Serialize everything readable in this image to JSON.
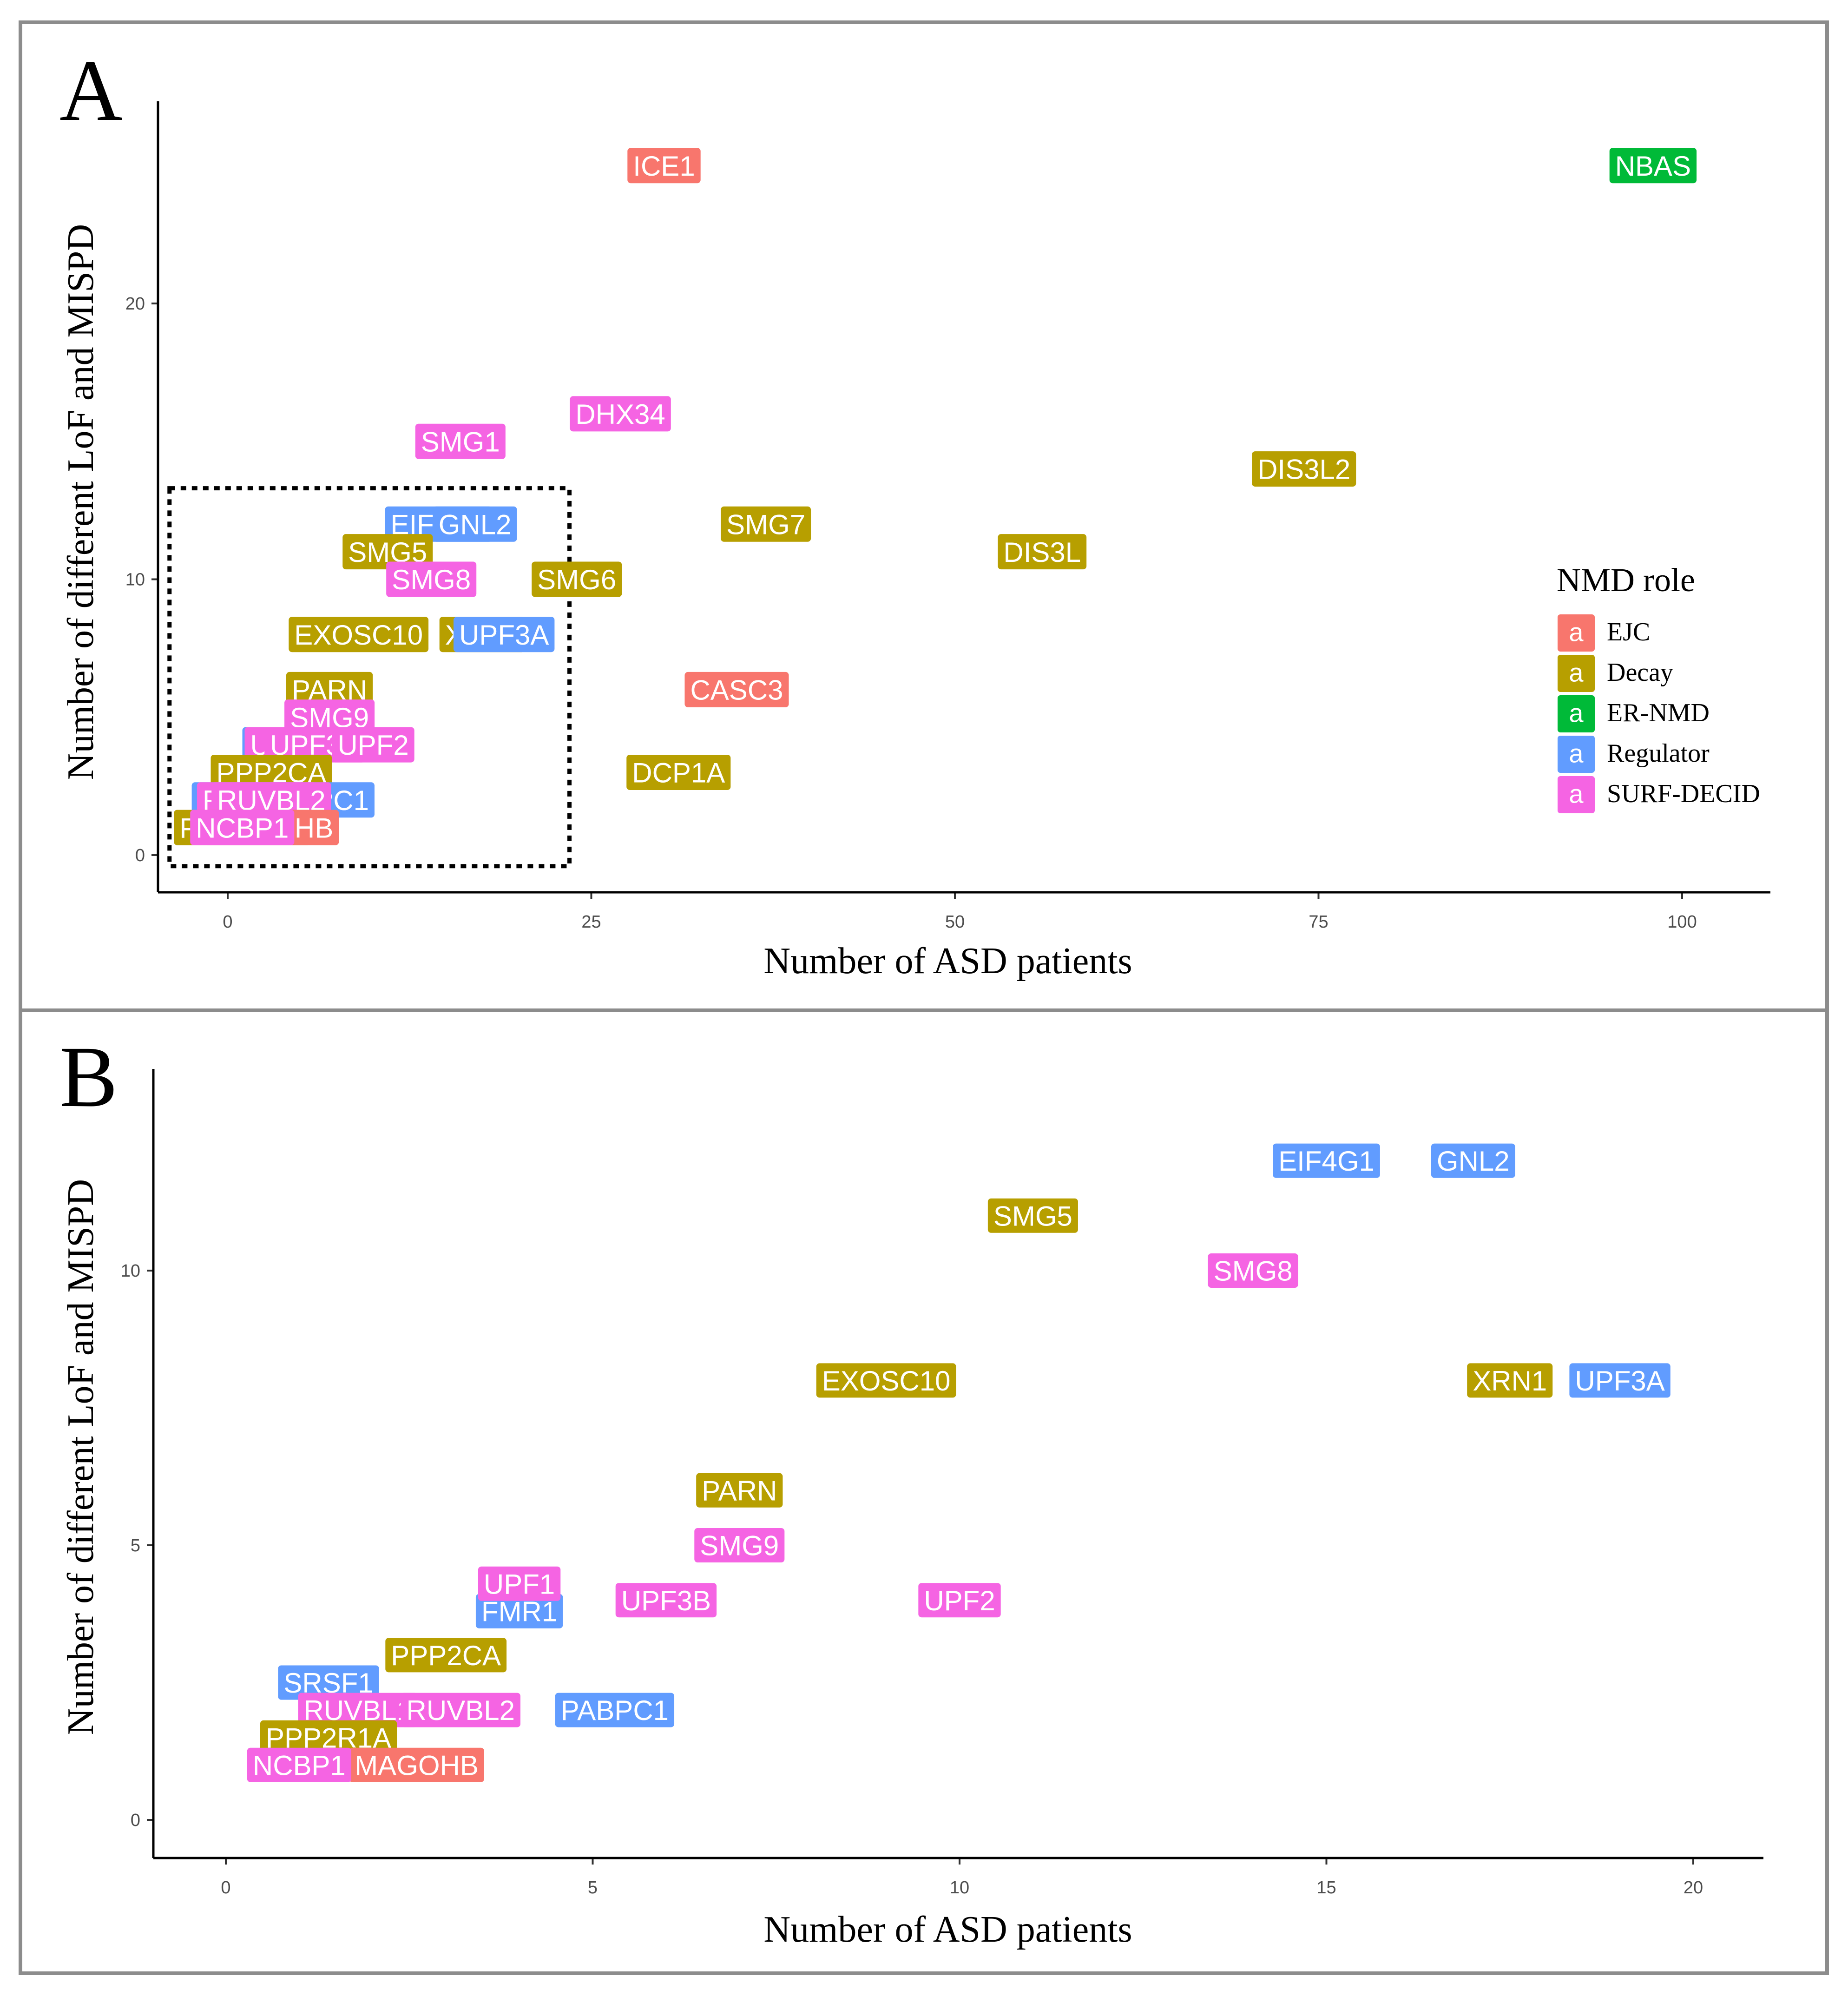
{
  "colors": {
    "EJC": "#F8766D",
    "Decay": "#B79F00",
    "ER-NMD": "#00BA38",
    "Regulator": "#619CFF",
    "SURF-DECID": "#F564E3"
  },
  "legend": {
    "title": "NMD role",
    "key_glyph": "a",
    "entries": [
      "EJC",
      "Decay",
      "ER-NMD",
      "Regulator",
      "SURF-DECID"
    ]
  },
  "chart_data": [
    {
      "type": "scatter",
      "panel_letter": "A",
      "xlabel": "Number of ASD patients",
      "ylabel": "Number of different LoF and MISPD",
      "xlim": [
        -4.5,
        106.5
      ],
      "ylim": [
        -1.2,
        26.5
      ],
      "x_ticks": [
        0,
        25,
        50,
        75,
        100
      ],
      "y_ticks": [
        0,
        10,
        20
      ],
      "zoom_box": {
        "x": [
          -4,
          23.5
        ],
        "y": [
          -0.4,
          13.3
        ]
      },
      "points": [
        {
          "gene": "ICE1",
          "role": "EJC",
          "x": 30,
          "y": 25
        },
        {
          "gene": "NBAS",
          "role": "ER-NMD",
          "x": 98,
          "y": 25
        },
        {
          "gene": "DHX34",
          "role": "SURF-DECID",
          "x": 27,
          "y": 16
        },
        {
          "gene": "SMG1",
          "role": "SURF-DECID",
          "x": 16,
          "y": 15
        },
        {
          "gene": "DIS3L2",
          "role": "Decay",
          "x": 74,
          "y": 14
        },
        {
          "gene": "SMG7",
          "role": "Decay",
          "x": 37,
          "y": 12
        },
        {
          "gene": "DIS3L",
          "role": "Decay",
          "x": 56,
          "y": 11
        },
        {
          "gene": "EIF4G1",
          "role": "Regulator",
          "x": 14.5,
          "y": 12
        },
        {
          "gene": "GNL2",
          "role": "Regulator",
          "x": 17,
          "y": 12
        },
        {
          "gene": "SMG5",
          "role": "Decay",
          "x": 11,
          "y": 11
        },
        {
          "gene": "SMG8",
          "role": "SURF-DECID",
          "x": 14,
          "y": 10
        },
        {
          "gene": "SMG6",
          "role": "Decay",
          "x": 24,
          "y": 10
        },
        {
          "gene": "EXOSC10",
          "role": "Decay",
          "x": 9,
          "y": 8
        },
        {
          "gene": "XRN1",
          "role": "Decay",
          "x": 17.5,
          "y": 8
        },
        {
          "gene": "UPF3A",
          "role": "Regulator",
          "x": 19,
          "y": 8
        },
        {
          "gene": "CASC3",
          "role": "EJC",
          "x": 35,
          "y": 6
        },
        {
          "gene": "PARN",
          "role": "Decay",
          "x": 7,
          "y": 6
        },
        {
          "gene": "SMG9",
          "role": "SURF-DECID",
          "x": 7,
          "y": 5
        },
        {
          "gene": "DCP1A",
          "role": "Decay",
          "x": 31,
          "y": 3
        },
        {
          "gene": "FMR1",
          "role": "Regulator",
          "x": 4,
          "y": 4
        },
        {
          "gene": "UPF1",
          "role": "SURF-DECID",
          "x": 4,
          "y": 4
        },
        {
          "gene": "UPF3B",
          "role": "SURF-DECID",
          "x": 6,
          "y": 4
        },
        {
          "gene": "UPF2",
          "role": "SURF-DECID",
          "x": 10,
          "y": 4
        },
        {
          "gene": "PPP2CA",
          "role": "Decay",
          "x": 3,
          "y": 3
        },
        {
          "gene": "SRSF1",
          "role": "Regulator",
          "x": 1,
          "y": 2
        },
        {
          "gene": "PABPC1",
          "role": "Regulator",
          "x": 6,
          "y": 2
        },
        {
          "gene": "RUVBL1",
          "role": "SURF-DECID",
          "x": 2,
          "y": 2
        },
        {
          "gene": "RUVBL2",
          "role": "SURF-DECID",
          "x": 3,
          "y": 2
        },
        {
          "gene": "PPP2R1A",
          "role": "Decay",
          "x": 1,
          "y": 1
        },
        {
          "gene": "MAGOHB",
          "role": "EJC",
          "x": 3,
          "y": 1
        },
        {
          "gene": "NCBP1",
          "role": "SURF-DECID",
          "x": 1,
          "y": 1
        }
      ]
    },
    {
      "type": "scatter",
      "panel_letter": "B",
      "xlabel": "Number of ASD patients",
      "ylabel": "Number of different LoF and MISPD",
      "xlim": [
        -1,
        21
      ],
      "ylim": [
        -0.6,
        13.2
      ],
      "x_ticks": [
        0,
        5,
        10,
        15,
        20
      ],
      "y_ticks": [
        0,
        5,
        10
      ],
      "points": [
        {
          "gene": "EIF4G1",
          "role": "Regulator",
          "x": 15,
          "y": 12
        },
        {
          "gene": "GNL2",
          "role": "Regulator",
          "x": 17,
          "y": 12
        },
        {
          "gene": "SMG5",
          "role": "Decay",
          "x": 11,
          "y": 11
        },
        {
          "gene": "SMG8",
          "role": "SURF-DECID",
          "x": 14,
          "y": 10
        },
        {
          "gene": "EXOSC10",
          "role": "Decay",
          "x": 9,
          "y": 8
        },
        {
          "gene": "XRN1",
          "role": "Decay",
          "x": 17.5,
          "y": 8
        },
        {
          "gene": "UPF3A",
          "role": "Regulator",
          "x": 19,
          "y": 8
        },
        {
          "gene": "PARN",
          "role": "Decay",
          "x": 7,
          "y": 6
        },
        {
          "gene": "SMG9",
          "role": "SURF-DECID",
          "x": 7,
          "y": 5
        },
        {
          "gene": "FMR1",
          "role": "Regulator",
          "x": 4,
          "y": 3.8
        },
        {
          "gene": "UPF1",
          "role": "SURF-DECID",
          "x": 4,
          "y": 4.3
        },
        {
          "gene": "UPF3B",
          "role": "SURF-DECID",
          "x": 6,
          "y": 4
        },
        {
          "gene": "UPF2",
          "role": "SURF-DECID",
          "x": 10,
          "y": 4
        },
        {
          "gene": "PPP2CA",
          "role": "Decay",
          "x": 3,
          "y": 3
        },
        {
          "gene": "SRSF1",
          "role": "Regulator",
          "x": 1.4,
          "y": 2.5
        },
        {
          "gene": "RUVBL1",
          "role": "SURF-DECID",
          "x": 1.8,
          "y": 2
        },
        {
          "gene": "RUVBL2",
          "role": "SURF-DECID",
          "x": 3.2,
          "y": 2
        },
        {
          "gene": "PABPC1",
          "role": "Regulator",
          "x": 5.3,
          "y": 2
        },
        {
          "gene": "PPP2R1A",
          "role": "Decay",
          "x": 1.4,
          "y": 1.5
        },
        {
          "gene": "MAGOHB",
          "role": "EJC",
          "x": 2.6,
          "y": 1
        },
        {
          "gene": "NCBP1",
          "role": "SURF-DECID",
          "x": 1,
          "y": 1
        }
      ]
    }
  ]
}
